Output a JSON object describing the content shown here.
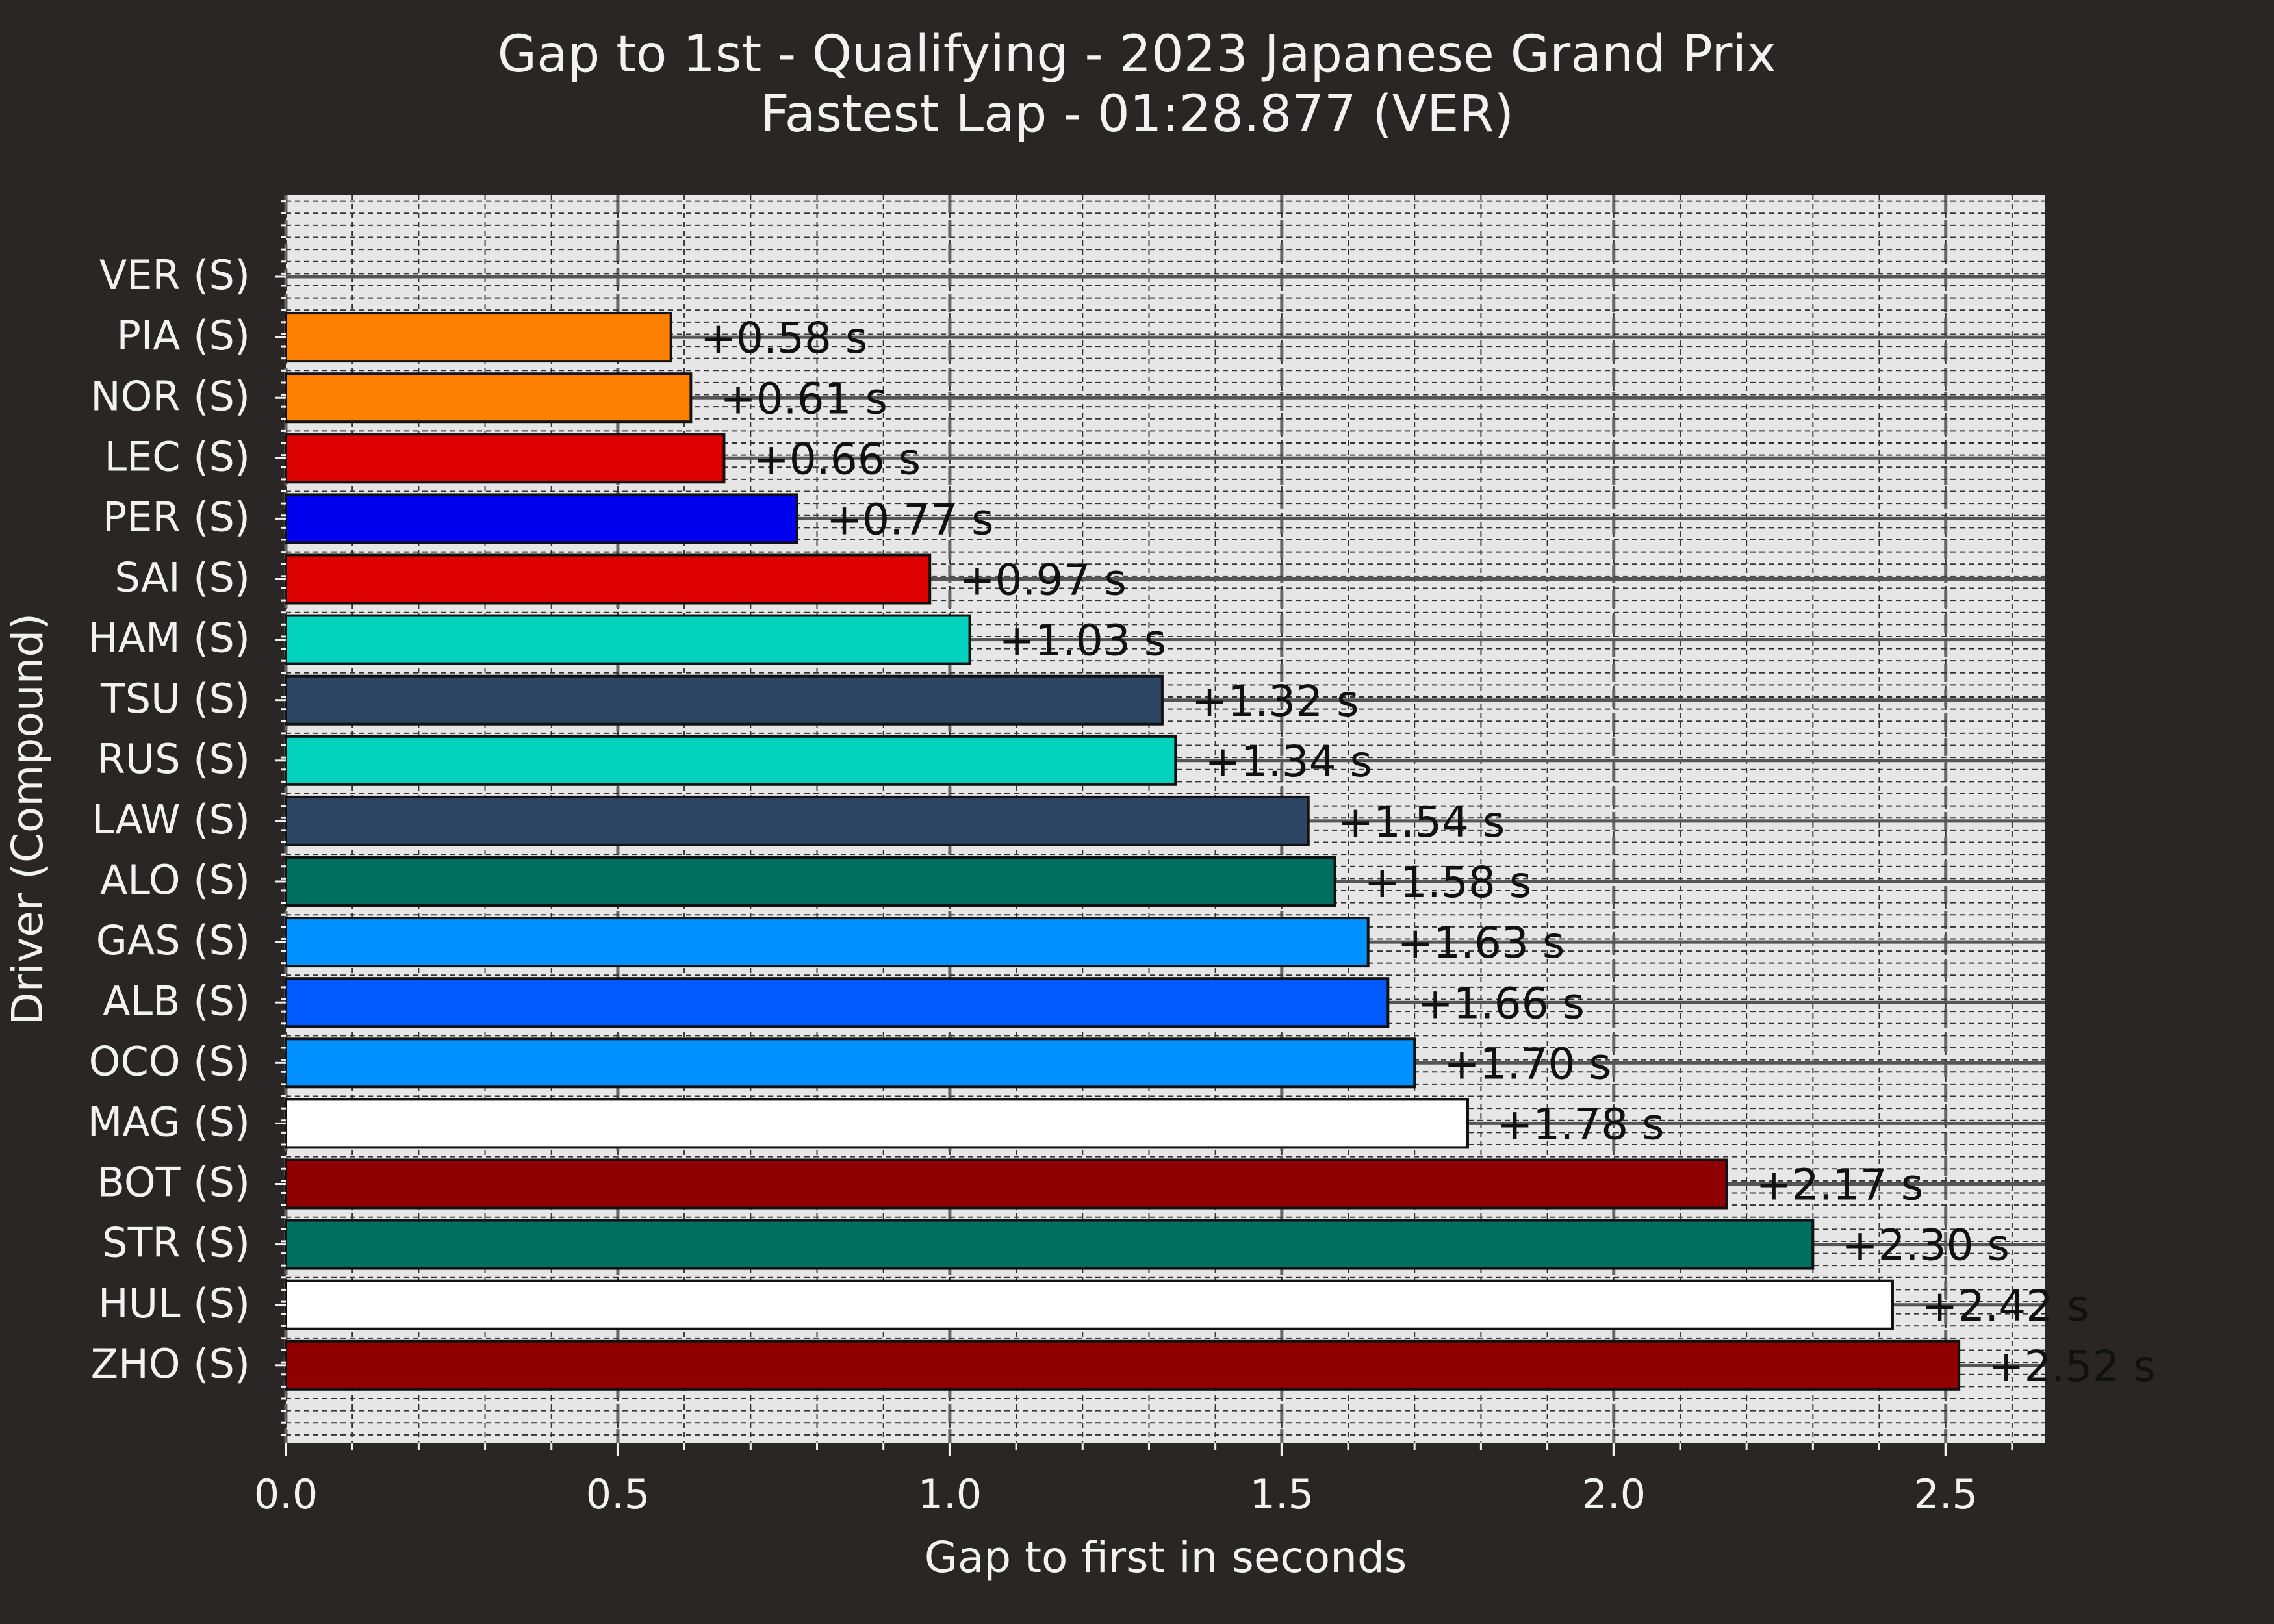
{
  "chart_data": {
    "type": "bar",
    "orientation": "horizontal",
    "title": "Gap to 1st - Qualifying - 2023 Japanese Grand Prix",
    "subtitle": "Fastest Lap - 01:28.877 (VER)",
    "xlabel": "Gap to first in seconds",
    "ylabel": "Driver (Compound)",
    "xlim": [
      0,
      2.65
    ],
    "xticks": [
      0.0,
      0.5,
      1.0,
      1.5,
      2.0,
      2.5
    ],
    "xtick_labels": [
      "0.0",
      "0.5",
      "1.0",
      "1.5",
      "2.0",
      "2.5"
    ],
    "grid": true,
    "categories": [
      "VER (S)",
      "PIA (S)",
      "NOR (S)",
      "LEC (S)",
      "PER (S)",
      "SAI (S)",
      "HAM (S)",
      "TSU (S)",
      "RUS (S)",
      "LAW (S)",
      "ALO (S)",
      "GAS (S)",
      "ALB (S)",
      "OCO (S)",
      "MAG (S)",
      "BOT (S)",
      "STR (S)",
      "HUL (S)",
      "ZHO (S)"
    ],
    "values": [
      0.0,
      0.58,
      0.61,
      0.66,
      0.77,
      0.97,
      1.03,
      1.32,
      1.34,
      1.54,
      1.58,
      1.63,
      1.66,
      1.7,
      1.78,
      2.17,
      2.3,
      2.42,
      2.52
    ],
    "value_labels": [
      "",
      "+0.58 s",
      "+0.61 s",
      "+0.66 s",
      "+0.77 s",
      "+0.97 s",
      "+1.03 s",
      "+1.32 s",
      "+1.34 s",
      "+1.54 s",
      "+1.58 s",
      "+1.63 s",
      "+1.66 s",
      "+1.70 s",
      "+1.78 s",
      "+2.17 s",
      "+2.30 s",
      "+2.42 s",
      "+2.52 s"
    ],
    "colors": [
      "#3671C6",
      "#FF8000",
      "#FF8000",
      "#DC0000",
      "#0000EE",
      "#DC0000",
      "#00D2BE",
      "#2B4562",
      "#00D2BE",
      "#2B4562",
      "#006F62",
      "#0090FF",
      "#005AFF",
      "#0090FF",
      "#FFFFFF",
      "#900000",
      "#006F62",
      "#FFFFFF",
      "#900000"
    ]
  }
}
